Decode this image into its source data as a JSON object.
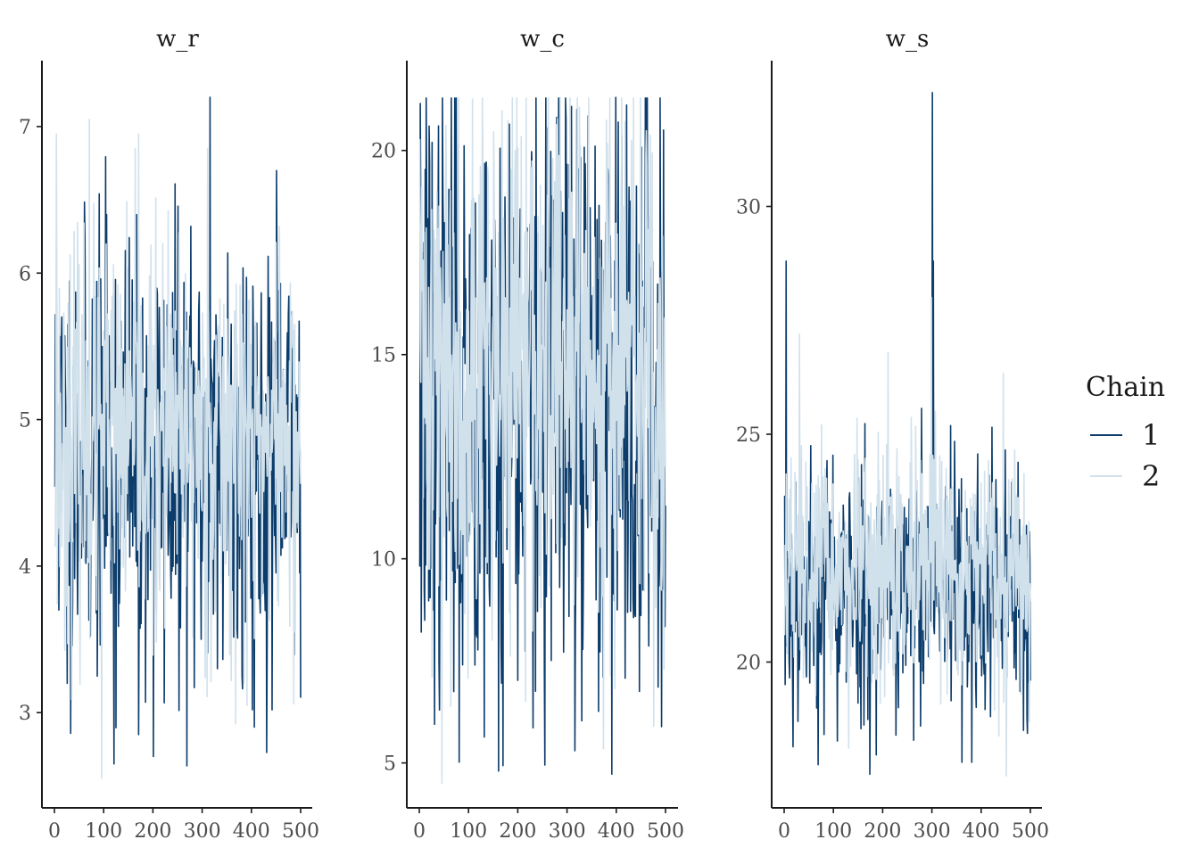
{
  "chart_data": {
    "type": "line",
    "description_kind": "MCMC trace plot",
    "x_ticks": [
      0,
      100,
      200,
      300,
      400,
      500
    ],
    "xlim": [
      0,
      500
    ],
    "legend": {
      "title": "Chain",
      "placement": "right",
      "entries": [
        {
          "label": "1",
          "color": "#0b3c6b"
        },
        {
          "label": "2",
          "color": "#d1e1ec"
        }
      ]
    },
    "panels": [
      {
        "title": "w_r",
        "ylim": [
          2.35,
          7.45
        ],
        "y_ticks": [
          3,
          4,
          5,
          6,
          7
        ],
        "series": [
          {
            "name": "1",
            "color": "#0b3c6b",
            "mean": 4.75,
            "sd": 0.75,
            "seed": 11,
            "points": [
              [
                3,
                5.7
              ],
              [
                8,
                3.7
              ],
              [
                25,
                3.2
              ],
              [
                105,
                6.4
              ],
              [
                120,
                2.65
              ],
              [
                170,
                2.85
              ],
              [
                200,
                2.7
              ],
              [
                315,
                7.2
              ],
              [
                330,
                3.3
              ],
              [
                380,
                3.25
              ],
              [
                450,
                6.7
              ]
            ]
          },
          {
            "name": "2",
            "color": "#d1e1ec",
            "mean": 4.85,
            "sd": 0.65,
            "seed": 23,
            "points": [
              [
                3,
                6.95
              ],
              [
                70,
                7.05
              ],
              [
                95,
                2.55
              ],
              [
                170,
                6.95
              ],
              [
                310,
                6.85
              ],
              [
                390,
                3.05
              ]
            ]
          }
        ]
      },
      {
        "title": "w_c",
        "ylim": [
          3.9,
          22.2
        ],
        "y_ticks": [
          5,
          10,
          15,
          20
        ],
        "series": [
          {
            "name": "1",
            "color": "#0b3c6b",
            "mean": 14.0,
            "sd": 3.8,
            "seed": 37,
            "points": [
              [
                2,
                18.5
              ],
              [
                160,
                4.8
              ],
              [
                315,
                5.3
              ],
              [
                398,
                21.3
              ],
              [
                500,
                11.3
              ],
              [
                495,
                20.5
              ]
            ]
          },
          {
            "name": "2",
            "color": "#d1e1ec",
            "mean": 14.8,
            "sd": 3.3,
            "seed": 41,
            "points": [
              [
                45,
                4.5
              ],
              [
                285,
                21.3
              ],
              [
                475,
                5.9
              ]
            ]
          }
        ]
      },
      {
        "title": "w_s",
        "ylim": [
          16.8,
          33.2
        ],
        "y_ticks": [
          20,
          25,
          30
        ],
        "series": [
          {
            "name": "1",
            "color": "#0b3c6b",
            "mean": 21.6,
            "sd": 1.45,
            "seed": 53,
            "points": [
              [
                3,
                28.8
              ],
              [
                300,
                32.5
              ],
              [
                302,
                28.8
              ],
              [
                360,
                17.8
              ],
              [
                380,
                17.8
              ]
            ]
          },
          {
            "name": "2",
            "color": "#d1e1ec",
            "mean": 21.9,
            "sd": 1.3,
            "seed": 67,
            "points": [
              [
                30,
                27.2
              ],
              [
                210,
                26.8
              ],
              [
                298,
                28.0
              ],
              [
                450,
                17.5
              ]
            ]
          }
        ]
      }
    ]
  }
}
